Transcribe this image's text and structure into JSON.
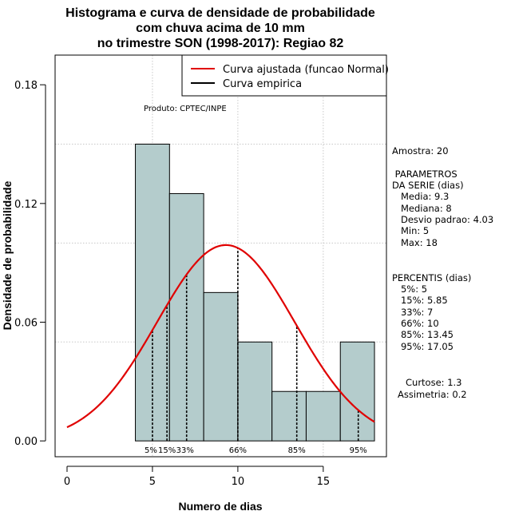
{
  "chart_data": {
    "type": "histogram",
    "title_lines": [
      "Histograma e curva de densidade de probabilidade",
      "com chuva acima de 10 mm",
      "no trimestre SON (1998-2017): Regiao 82"
    ],
    "xlabel": "Numero de dias",
    "ylabel": "Densidade de probabilidade",
    "xlim": [
      -0.7,
      18.7
    ],
    "ylim": [
      -0.008,
      0.195
    ],
    "x_ticks": [
      0,
      5,
      10,
      15
    ],
    "y_ticks": [
      0.0,
      0.06,
      0.12,
      0.18
    ],
    "y_tick_labels": [
      "0.00",
      "0.06",
      "0.12",
      "0.18"
    ],
    "x_grid": [
      5,
      10,
      15
    ],
    "y_grid": [
      0.05,
      0.1,
      0.15
    ],
    "bins": [
      {
        "x0": 4,
        "x1": 6,
        "density": 0.15
      },
      {
        "x0": 6,
        "x1": 8,
        "density": 0.125
      },
      {
        "x0": 8,
        "x1": 10,
        "density": 0.075
      },
      {
        "x0": 10,
        "x1": 12,
        "density": 0.05
      },
      {
        "x0": 12,
        "x1": 14,
        "density": 0.025
      },
      {
        "x0": 14,
        "x1": 16,
        "density": 0.025
      },
      {
        "x0": 16,
        "x1": 18,
        "density": 0.05
      }
    ],
    "normal_curve": {
      "mean": 9.3,
      "sd": 4.03,
      "x_from": 0,
      "x_to": 18,
      "color": "#e00000"
    },
    "percentile_lines": [
      {
        "label": "5%",
        "value": 5
      },
      {
        "label": "15%",
        "value": 5.85
      },
      {
        "label": "33%",
        "value": 7
      },
      {
        "label": "66%",
        "value": 10
      },
      {
        "label": "85%",
        "value": 13.45
      },
      {
        "label": "95%",
        "value": 17.05
      }
    ],
    "legend": [
      {
        "label": "Curva ajustada (funcao Normal)",
        "color": "#e00000"
      },
      {
        "label": "Curva empirica",
        "color": "#000000"
      }
    ],
    "legend_position": "top-right",
    "bar_color": "#b4cccc",
    "annotation": "Produto: CPTEC/INPE"
  },
  "side_panel": {
    "amostra": "Amostra: 20",
    "parametros_title": [
      " PARAMETROS",
      "DA SERIE (dias)"
    ],
    "parametros": [
      "   Media: 9.3",
      "   Mediana: 8",
      "   Desvio padrao: 4.03",
      "   Min: 5",
      "   Max: 18"
    ],
    "percentis_title": "PERCENTIS (dias)",
    "percentis": [
      "   5%: 5",
      "   15%: 5.85",
      "   33%: 7",
      "   66%: 10",
      "   85%: 13.45",
      "   95%: 17.05"
    ],
    "curtose": "Curtose: 1.3",
    "assimetria": "Assimetria: 0.2"
  }
}
